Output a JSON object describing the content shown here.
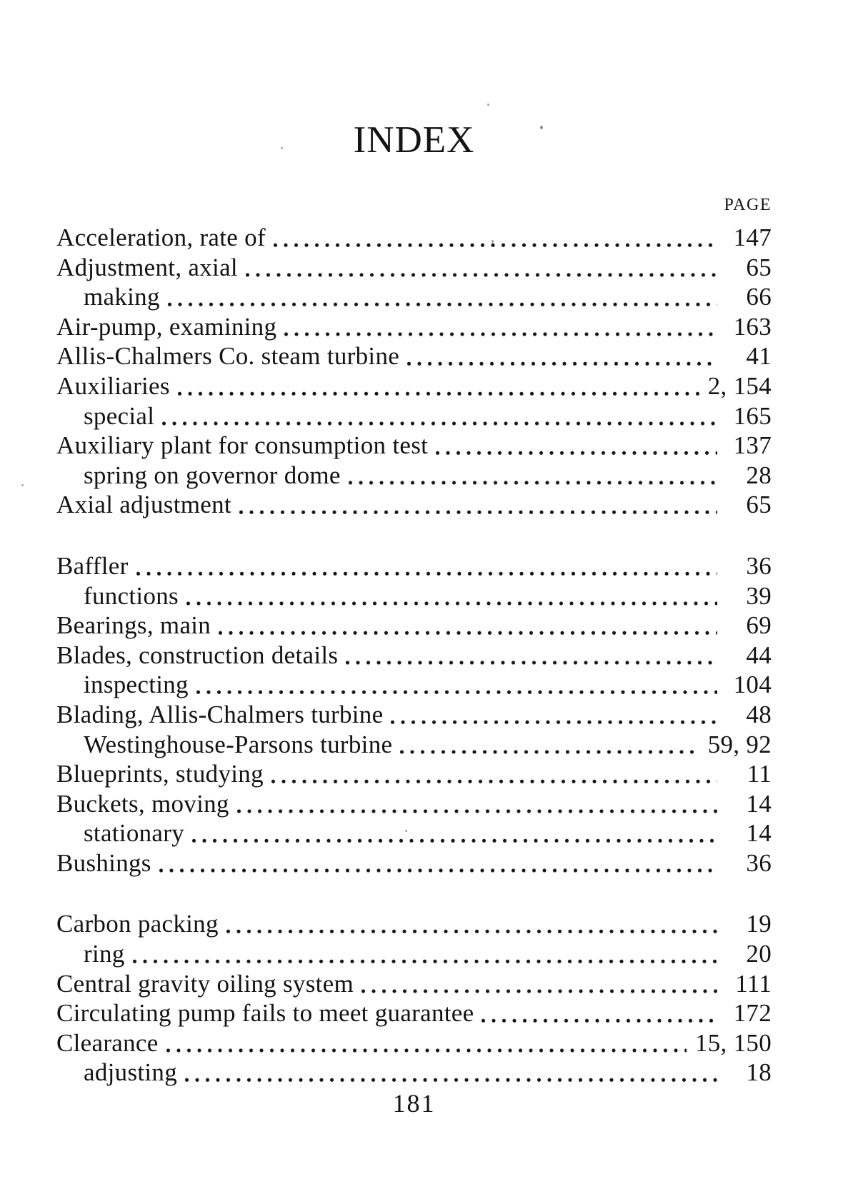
{
  "page": {
    "title": "INDEX",
    "column_header": "PAGE",
    "footer_page_number": "181"
  },
  "colors": {
    "paper": "#ffffff",
    "ink": "#141414"
  },
  "index_groups": [
    {
      "entries": [
        {
          "label": "Acceleration, rate of",
          "pages": "147",
          "indent": false
        },
        {
          "label": "Adjustment, axial",
          "pages": "65",
          "indent": false
        },
        {
          "label": "making",
          "pages": "66",
          "indent": true
        },
        {
          "label": "Air-pump, examining",
          "pages": "163",
          "indent": false
        },
        {
          "label": "Allis-Chalmers Co. steam turbine",
          "pages": "41",
          "indent": false
        },
        {
          "label": "Auxiliaries",
          "pages": "2, 154",
          "indent": false
        },
        {
          "label": "special",
          "pages": "165",
          "indent": true
        },
        {
          "label": "Auxiliary plant for consumption test",
          "pages": "137",
          "indent": false
        },
        {
          "label": "spring on governor dome",
          "pages": "28",
          "indent": true
        },
        {
          "label": "Axial adjustment",
          "pages": "65",
          "indent": false
        }
      ]
    },
    {
      "entries": [
        {
          "label": "Baffler",
          "pages": "36",
          "indent": false
        },
        {
          "label": "functions",
          "pages": "39",
          "indent": true
        },
        {
          "label": "Bearings, main",
          "pages": "69",
          "indent": false
        },
        {
          "label": "Blades, construction details",
          "pages": "44",
          "indent": false
        },
        {
          "label": "inspecting",
          "pages": "104",
          "indent": true
        },
        {
          "label": "Blading, Allis-Chalmers turbine",
          "pages": "48",
          "indent": false
        },
        {
          "label": "Westinghouse-Parsons turbine",
          "pages": "59, 92",
          "indent": true
        },
        {
          "label": "Blueprints, studying",
          "pages": "11",
          "indent": false
        },
        {
          "label": "Buckets, moving",
          "pages": "14",
          "indent": false
        },
        {
          "label": "stationary",
          "pages": "14",
          "indent": true
        },
        {
          "label": "Bushings",
          "pages": "36",
          "indent": false
        }
      ]
    },
    {
      "entries": [
        {
          "label": "Carbon packing",
          "pages": "19",
          "indent": false
        },
        {
          "label": "ring",
          "pages": "20",
          "indent": true
        },
        {
          "label": "Central gravity oiling system",
          "pages": "111",
          "indent": false
        },
        {
          "label": "Circulating pump fails to meet guarantee",
          "pages": "172",
          "indent": false
        },
        {
          "label": "Clearance",
          "pages": "15, 150",
          "indent": false
        },
        {
          "label": "adjusting",
          "pages": "18",
          "indent": true
        }
      ]
    }
  ]
}
